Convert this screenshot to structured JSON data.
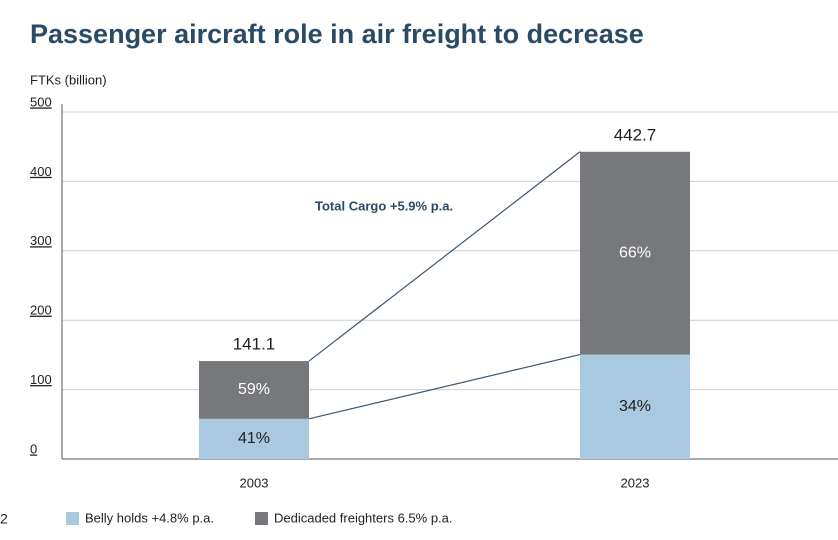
{
  "chart_data": {
    "type": "stacked_bar",
    "title": "Passenger aircraft role in air freight to decrease",
    "y_label": "FTKs (billion)",
    "categories": [
      "2003",
      "2023"
    ],
    "series": [
      {
        "name": "Belly holds +4.8% p.a.",
        "color": "#a9c9e0",
        "values": [
          57.9,
          150.5
        ],
        "shares": [
          41,
          34
        ],
        "share_labels": [
          "41%",
          "34%"
        ],
        "label_color": "#222222"
      },
      {
        "name": "Dedicaded freighters 6.5% p.a.",
        "color": "#77787b",
        "values": [
          83.2,
          292.2
        ],
        "shares": [
          59,
          66
        ],
        "share_labels": [
          "59%",
          "66%"
        ],
        "label_color": "#ffffff"
      }
    ],
    "totals": [
      141.1,
      442.7
    ],
    "annotation": "Total Cargo +5.9% p.a.",
    "side_text": "2",
    "ylim": [
      0,
      500
    ],
    "yticks": [
      0,
      100,
      200,
      300,
      400,
      500
    ],
    "grid": true,
    "line_color": "#3d5670"
  }
}
